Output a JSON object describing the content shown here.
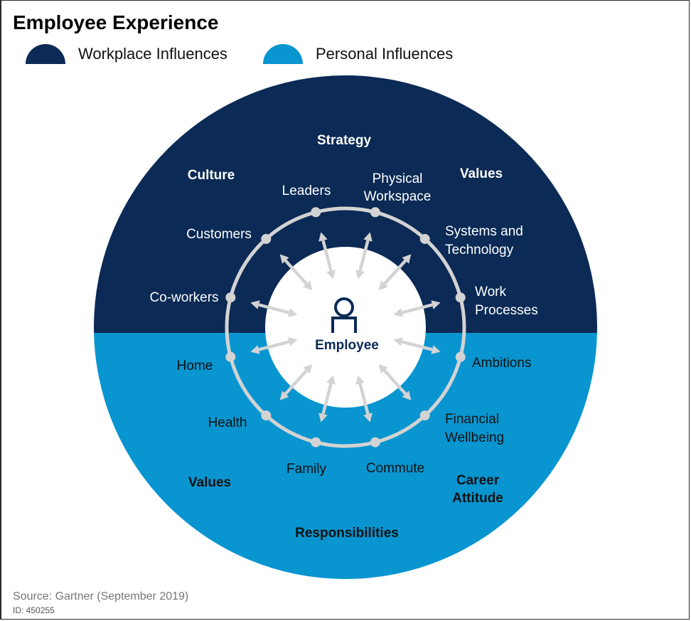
{
  "title": "Employee Experience",
  "legend": [
    {
      "label": "Workplace Influences",
      "color": "#0b2a55"
    },
    {
      "label": "Personal Influences",
      "color": "#0895d0"
    }
  ],
  "center": {
    "label": "Employee",
    "icon": "person-icon"
  },
  "outer_labels": {
    "strategy": "Strategy",
    "culture": "Culture",
    "values_top": "Values",
    "values_bottom": "Values",
    "career_attitude_line1": "Career",
    "career_attitude_line2": "Attitude",
    "responsibilities": "Responsibilities"
  },
  "ring_items": {
    "leaders": "Leaders",
    "physical_workspace_line1": "Physical",
    "physical_workspace_line2": "Workspace",
    "customers": "Customers",
    "systems_line1": "Systems and",
    "systems_line2": "Technology",
    "coworkers": "Co-workers",
    "work_processes_line1": "Work",
    "work_processes_line2": "Processes",
    "home": "Home",
    "ambitions": "Ambitions",
    "health": "Health",
    "financial_line1": "Financial",
    "financial_line2": "Wellbeing",
    "family": "Family",
    "commute": "Commute"
  },
  "source": "Source: Gartner (September 2019)",
  "id_text": "ID: 450255",
  "colors": {
    "workplace": "#0b2a55",
    "personal": "#0895d0",
    "ring": "#d3d3d3",
    "center": "#ffffff"
  }
}
